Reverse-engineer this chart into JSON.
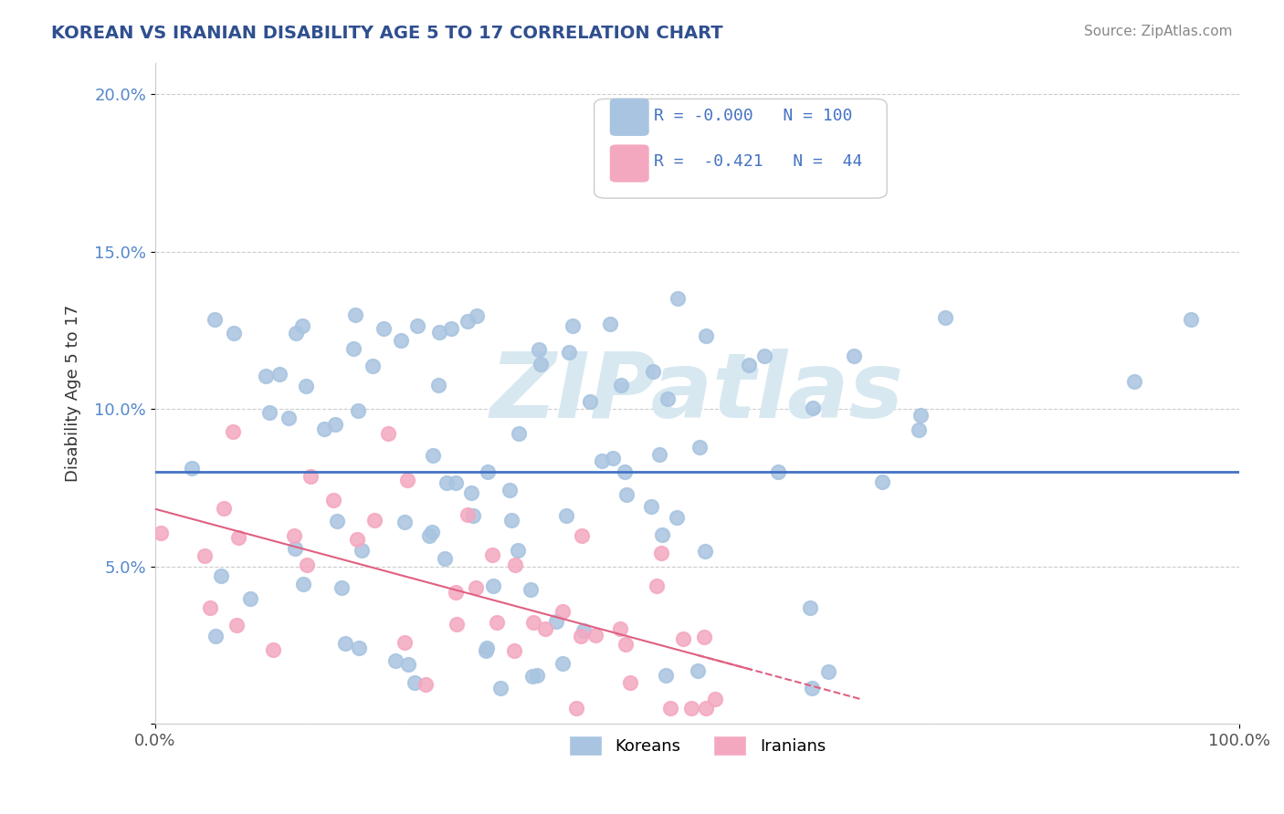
{
  "title": "KOREAN VS IRANIAN DISABILITY AGE 5 TO 17 CORRELATION CHART",
  "source": "Source: ZipAtlas.com",
  "xlabel": "",
  "ylabel": "Disability Age 5 to 17",
  "xlim": [
    0,
    1
  ],
  "ylim": [
    0,
    0.21
  ],
  "yticks": [
    0,
    0.05,
    0.1,
    0.15,
    0.2
  ],
  "ytick_labels": [
    "",
    "5.0%",
    "10.0%",
    "15.0%",
    "20.0%"
  ],
  "xticks": [
    0,
    1
  ],
  "xtick_labels": [
    "0.0%",
    "100.0%"
  ],
  "korean_R": -0.0,
  "korean_N": 100,
  "iranian_R": -0.421,
  "iranian_N": 44,
  "korean_color": "#a8c4e0",
  "korean_line_color": "#4472c4",
  "iranian_color": "#f4a8c0",
  "iranian_line_color": "#e06080",
  "title_color": "#2f4f8f",
  "source_color": "#888888",
  "watermark_color": "#d8e8f0",
  "background_color": "#ffffff",
  "grid_color": "#cccccc",
  "legend_R_color": "#4472c4",
  "legend_N_color": "#4472c4"
}
